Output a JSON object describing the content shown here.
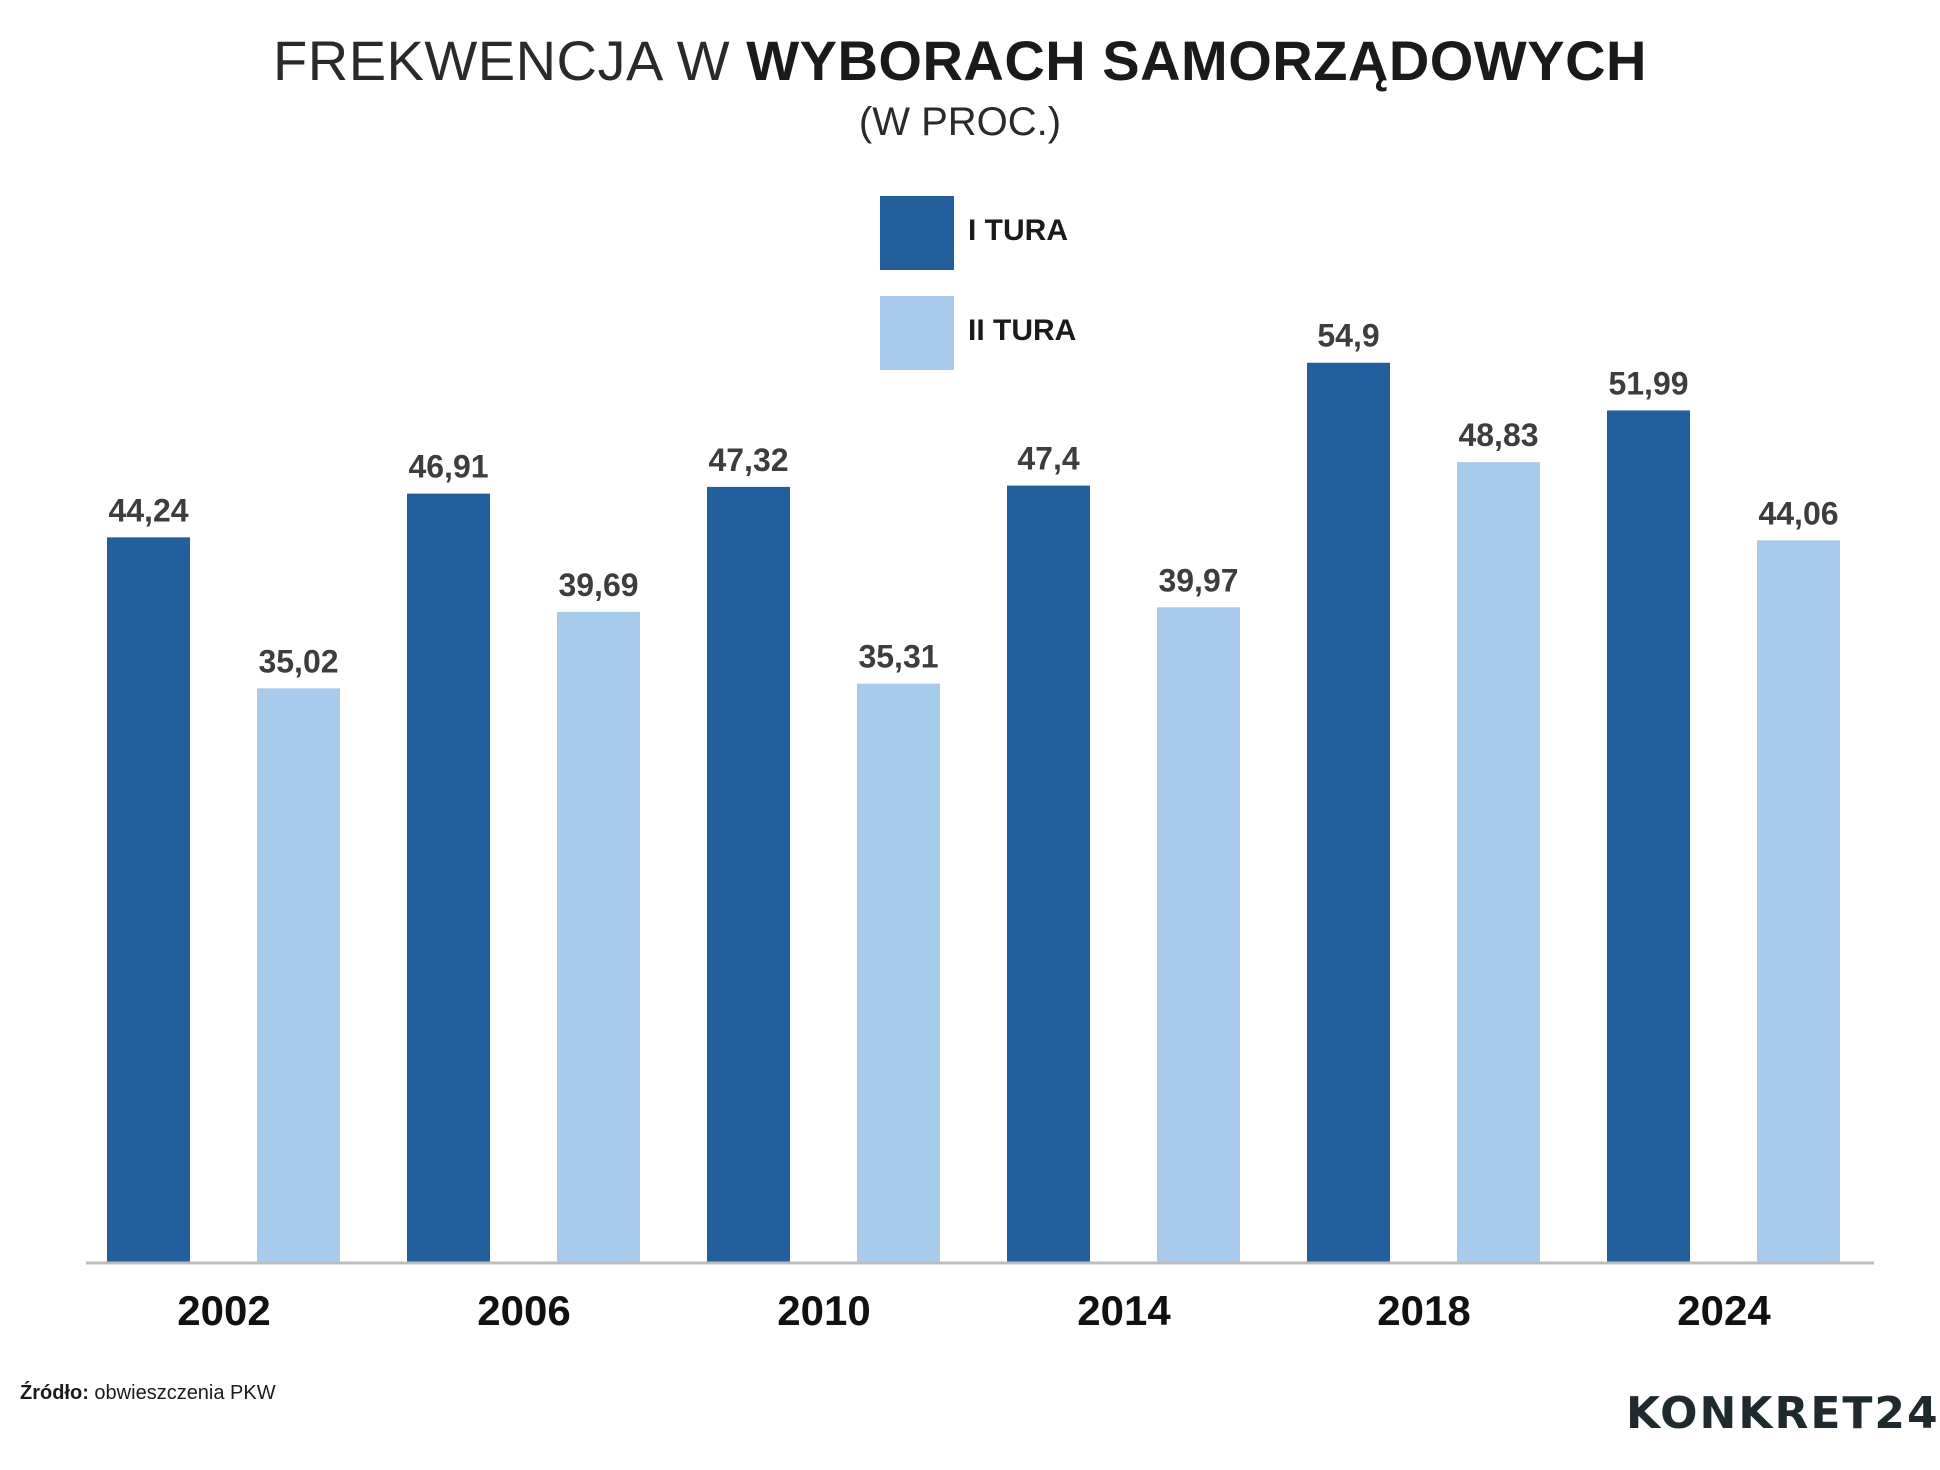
{
  "header": {
    "title_light": "FREKWENCJA W",
    "title_bold": "WYBORACH SAMORZĄDOWYCH",
    "subtitle": "(W PROC.)"
  },
  "colors": {
    "series_1": "#225f9c",
    "series_2": "#a8caeb",
    "axis": "#bcbcbc",
    "value_label": "#3d3d3d"
  },
  "chart_data": {
    "type": "bar",
    "title": "FREKWENCJA W WYBORACH SAMORZĄDOWYCH",
    "subtitle": "(W PROC.)",
    "categories": [
      "2002",
      "2006",
      "2010",
      "2014",
      "2018",
      "2024"
    ],
    "series": [
      {
        "name": "I TURA",
        "values": [
          44.24,
          46.91,
          47.32,
          47.4,
          54.9,
          51.99
        ],
        "labels": [
          "44,24",
          "46,91",
          "47,32",
          "47,4",
          "54,9",
          "51,99"
        ]
      },
      {
        "name": "II TURA",
        "values": [
          35.02,
          39.69,
          35.31,
          39.97,
          48.83,
          44.06
        ],
        "labels": [
          "35,02",
          "39,69",
          "35,31",
          "39,97",
          "48,83",
          "44,06"
        ]
      }
    ],
    "ylim": [
      0,
      60
    ],
    "grid": false,
    "legend_position": "top-center"
  },
  "footer": {
    "source_label": "Źródło:",
    "source_text": " obwieszczenia PKW",
    "logo": "KONKRET24"
  }
}
